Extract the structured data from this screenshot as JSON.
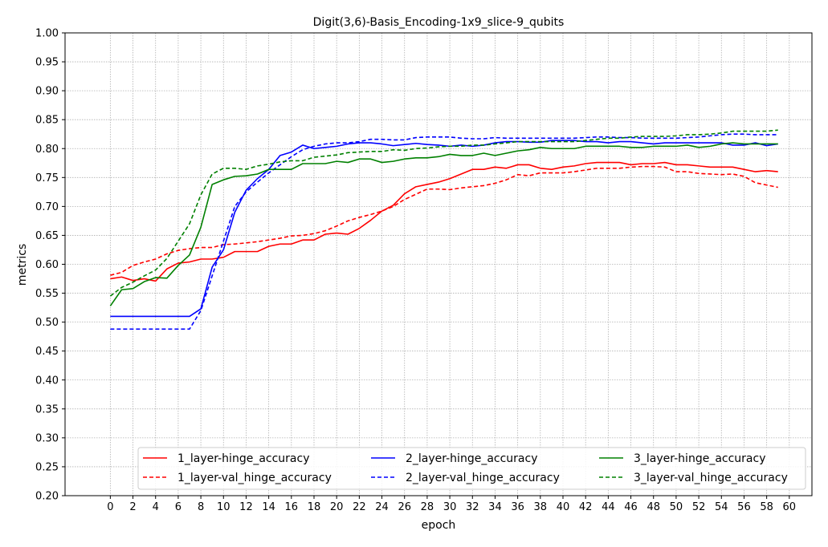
{
  "chart_data": {
    "type": "line",
    "title": "Digit(3,6)-Basis_Encoding-1x9_slice-9_qubits",
    "xlabel": "epoch",
    "ylabel": "metrics",
    "xlim": [
      -4,
      62
    ],
    "ylim": [
      0.2,
      1.0
    ],
    "xticks": [
      0,
      2,
      4,
      6,
      8,
      10,
      12,
      14,
      16,
      18,
      20,
      22,
      24,
      26,
      28,
      30,
      32,
      34,
      36,
      38,
      40,
      42,
      44,
      46,
      48,
      50,
      52,
      54,
      56,
      58,
      60
    ],
    "xtick_labels": [
      "0",
      "2",
      "4",
      "6",
      "8",
      "10",
      "12",
      "14",
      "16",
      "18",
      "20",
      "22",
      "24",
      "26",
      "28",
      "30",
      "32",
      "34",
      "36",
      "38",
      "40",
      "42",
      "44",
      "46",
      "48",
      "50",
      "52",
      "54",
      "56",
      "58",
      "60"
    ],
    "yticks": [
      0.2,
      0.25,
      0.3,
      0.35,
      0.4,
      0.45,
      0.5,
      0.55,
      0.6,
      0.65,
      0.7,
      0.75,
      0.8,
      0.85,
      0.9,
      0.95,
      1.0
    ],
    "ytick_labels": [
      "0.20",
      "0.25",
      "0.30",
      "0.35",
      "0.40",
      "0.45",
      "0.50",
      "0.55",
      "0.60",
      "0.65",
      "0.70",
      "0.75",
      "0.80",
      "0.85",
      "0.90",
      "0.95",
      "1.00"
    ],
    "grid": true,
    "legend_position": "bottom",
    "x": [
      0,
      1,
      2,
      3,
      4,
      5,
      6,
      7,
      8,
      9,
      10,
      11,
      12,
      13,
      14,
      15,
      16,
      17,
      18,
      19,
      20,
      21,
      22,
      23,
      24,
      25,
      26,
      27,
      28,
      29,
      30,
      31,
      32,
      33,
      34,
      35,
      36,
      37,
      38,
      39,
      40,
      41,
      42,
      43,
      44,
      45,
      46,
      47,
      48,
      49,
      50,
      51,
      52,
      53,
      54,
      55,
      56,
      57,
      58,
      59
    ],
    "series": [
      {
        "name": "1_layer-hinge_accuracy",
        "color": "#ff0000",
        "dashed": false,
        "values": [
          0.575,
          0.578,
          0.572,
          0.575,
          0.571,
          0.592,
          0.602,
          0.604,
          0.609,
          0.609,
          0.612,
          0.622,
          0.622,
          0.622,
          0.631,
          0.635,
          0.635,
          0.642,
          0.642,
          0.652,
          0.654,
          0.652,
          0.662,
          0.676,
          0.692,
          0.702,
          0.722,
          0.734,
          0.738,
          0.742,
          0.748,
          0.756,
          0.764,
          0.764,
          0.768,
          0.766,
          0.772,
          0.772,
          0.766,
          0.764,
          0.768,
          0.77,
          0.774,
          0.776,
          0.776,
          0.776,
          0.772,
          0.774,
          0.774,
          0.776,
          0.772,
          0.772,
          0.77,
          0.768,
          0.768,
          0.768,
          0.764,
          0.76,
          0.762,
          0.76
        ]
      },
      {
        "name": "1_layer-val_hinge_accuracy",
        "color": "#ff0000",
        "dashed": true,
        "values": [
          0.581,
          0.586,
          0.598,
          0.604,
          0.609,
          0.618,
          0.624,
          0.627,
          0.629,
          0.629,
          0.634,
          0.635,
          0.637,
          0.639,
          0.642,
          0.645,
          0.649,
          0.65,
          0.653,
          0.658,
          0.666,
          0.675,
          0.681,
          0.686,
          0.692,
          0.7,
          0.712,
          0.721,
          0.73,
          0.73,
          0.729,
          0.732,
          0.734,
          0.736,
          0.74,
          0.746,
          0.755,
          0.753,
          0.758,
          0.758,
          0.758,
          0.76,
          0.763,
          0.766,
          0.766,
          0.766,
          0.768,
          0.769,
          0.769,
          0.768,
          0.76,
          0.76,
          0.757,
          0.756,
          0.755,
          0.756,
          0.752,
          0.741,
          0.737,
          0.733
        ]
      },
      {
        "name": "2_layer-hinge_accuracy",
        "color": "#0000ff",
        "dashed": false,
        "values": [
          0.51,
          0.51,
          0.51,
          0.51,
          0.51,
          0.51,
          0.51,
          0.51,
          0.523,
          0.595,
          0.625,
          0.69,
          0.728,
          0.748,
          0.764,
          0.788,
          0.794,
          0.806,
          0.8,
          0.802,
          0.804,
          0.808,
          0.81,
          0.81,
          0.808,
          0.805,
          0.807,
          0.809,
          0.807,
          0.806,
          0.804,
          0.806,
          0.804,
          0.806,
          0.81,
          0.812,
          0.812,
          0.811,
          0.811,
          0.814,
          0.814,
          0.814,
          0.812,
          0.812,
          0.81,
          0.812,
          0.812,
          0.81,
          0.808,
          0.81,
          0.81,
          0.81,
          0.81,
          0.81,
          0.81,
          0.806,
          0.806,
          0.81,
          0.805,
          0.808
        ]
      },
      {
        "name": "2_layer-val_hinge_accuracy",
        "color": "#0000ff",
        "dashed": true,
        "values": [
          0.488,
          0.488,
          0.488,
          0.488,
          0.488,
          0.488,
          0.488,
          0.488,
          0.52,
          0.58,
          0.64,
          0.7,
          0.725,
          0.742,
          0.758,
          0.772,
          0.786,
          0.798,
          0.804,
          0.808,
          0.81,
          0.81,
          0.812,
          0.816,
          0.816,
          0.815,
          0.815,
          0.819,
          0.82,
          0.82,
          0.82,
          0.818,
          0.817,
          0.817,
          0.819,
          0.818,
          0.818,
          0.818,
          0.818,
          0.818,
          0.818,
          0.818,
          0.819,
          0.82,
          0.82,
          0.819,
          0.819,
          0.818,
          0.818,
          0.818,
          0.818,
          0.819,
          0.82,
          0.822,
          0.824,
          0.825,
          0.825,
          0.824,
          0.824,
          0.824
        ]
      },
      {
        "name": "3_layer-hinge_accuracy",
        "color": "#008000",
        "dashed": false,
        "values": [
          0.528,
          0.556,
          0.558,
          0.57,
          0.577,
          0.576,
          0.598,
          0.616,
          0.664,
          0.738,
          0.746,
          0.752,
          0.753,
          0.756,
          0.764,
          0.764,
          0.764,
          0.774,
          0.774,
          0.774,
          0.778,
          0.776,
          0.782,
          0.782,
          0.776,
          0.778,
          0.782,
          0.784,
          0.784,
          0.786,
          0.79,
          0.788,
          0.788,
          0.792,
          0.788,
          0.792,
          0.796,
          0.798,
          0.802,
          0.8,
          0.8,
          0.8,
          0.804,
          0.804,
          0.804,
          0.804,
          0.802,
          0.802,
          0.804,
          0.804,
          0.804,
          0.806,
          0.802,
          0.804,
          0.808,
          0.81,
          0.808,
          0.808,
          0.808,
          0.808
        ]
      },
      {
        "name": "3_layer-val_hinge_accuracy",
        "color": "#008000",
        "dashed": true,
        "values": [
          0.545,
          0.56,
          0.569,
          0.58,
          0.59,
          0.61,
          0.64,
          0.67,
          0.72,
          0.756,
          0.766,
          0.766,
          0.764,
          0.77,
          0.773,
          0.777,
          0.779,
          0.779,
          0.785,
          0.787,
          0.789,
          0.793,
          0.794,
          0.795,
          0.795,
          0.798,
          0.797,
          0.8,
          0.801,
          0.803,
          0.804,
          0.804,
          0.806,
          0.806,
          0.808,
          0.81,
          0.812,
          0.812,
          0.812,
          0.812,
          0.812,
          0.812,
          0.814,
          0.816,
          0.818,
          0.818,
          0.82,
          0.821,
          0.821,
          0.821,
          0.822,
          0.824,
          0.824,
          0.825,
          0.827,
          0.83,
          0.83,
          0.83,
          0.83,
          0.832
        ]
      }
    ]
  }
}
